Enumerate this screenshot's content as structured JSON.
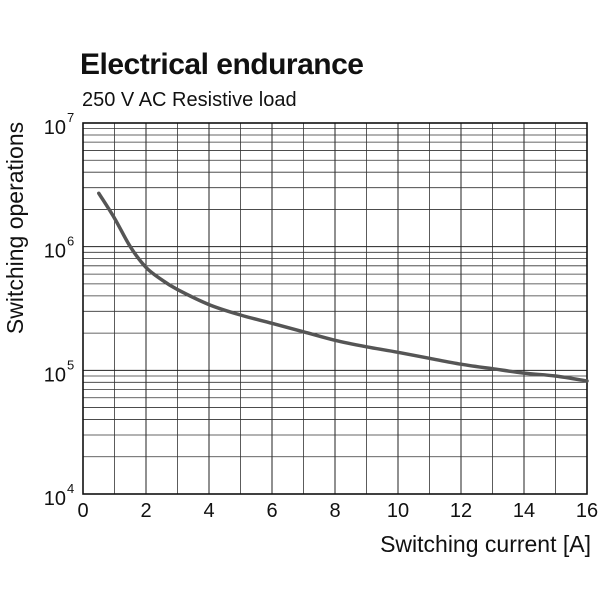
{
  "chart_data": {
    "type": "line",
    "title": "Electrical endurance",
    "subtitle": "250 V AC Resistive load",
    "xlabel": "Switching current [A]",
    "ylabel": "Switching operations",
    "xlim": [
      0,
      16
    ],
    "ylim": [
      10000,
      10000000
    ],
    "yscale": "log",
    "grid": true,
    "x_ticks": [
      0,
      2,
      4,
      6,
      8,
      10,
      12,
      14,
      16
    ],
    "x_tick_labels": [
      "0",
      "2",
      "4",
      "6",
      "8",
      "10",
      "12",
      "14",
      "16"
    ],
    "y_ticks": [
      {
        "value": 10000,
        "base": "10",
        "exp": "4"
      },
      {
        "value": 100000,
        "base": "10",
        "exp": "5"
      },
      {
        "value": 1000000,
        "base": "10",
        "exp": "6"
      },
      {
        "value": 10000000,
        "base": "10",
        "exp": "7"
      }
    ],
    "series": [
      {
        "color": "#555555",
        "x": [
          0.5,
          1.0,
          1.5,
          2.0,
          2.5,
          3.0,
          4.0,
          5.0,
          6.0,
          7.0,
          8.0,
          9.0,
          10.0,
          11.0,
          12.0,
          13.0,
          14.0,
          15.0,
          16.0
        ],
        "y": [
          2700000,
          1700000,
          1000000,
          680000,
          540000,
          450000,
          340000,
          280000,
          240000,
          205000,
          175000,
          155000,
          140000,
          125000,
          112000,
          103000,
          95000,
          90000,
          82000
        ]
      }
    ]
  }
}
